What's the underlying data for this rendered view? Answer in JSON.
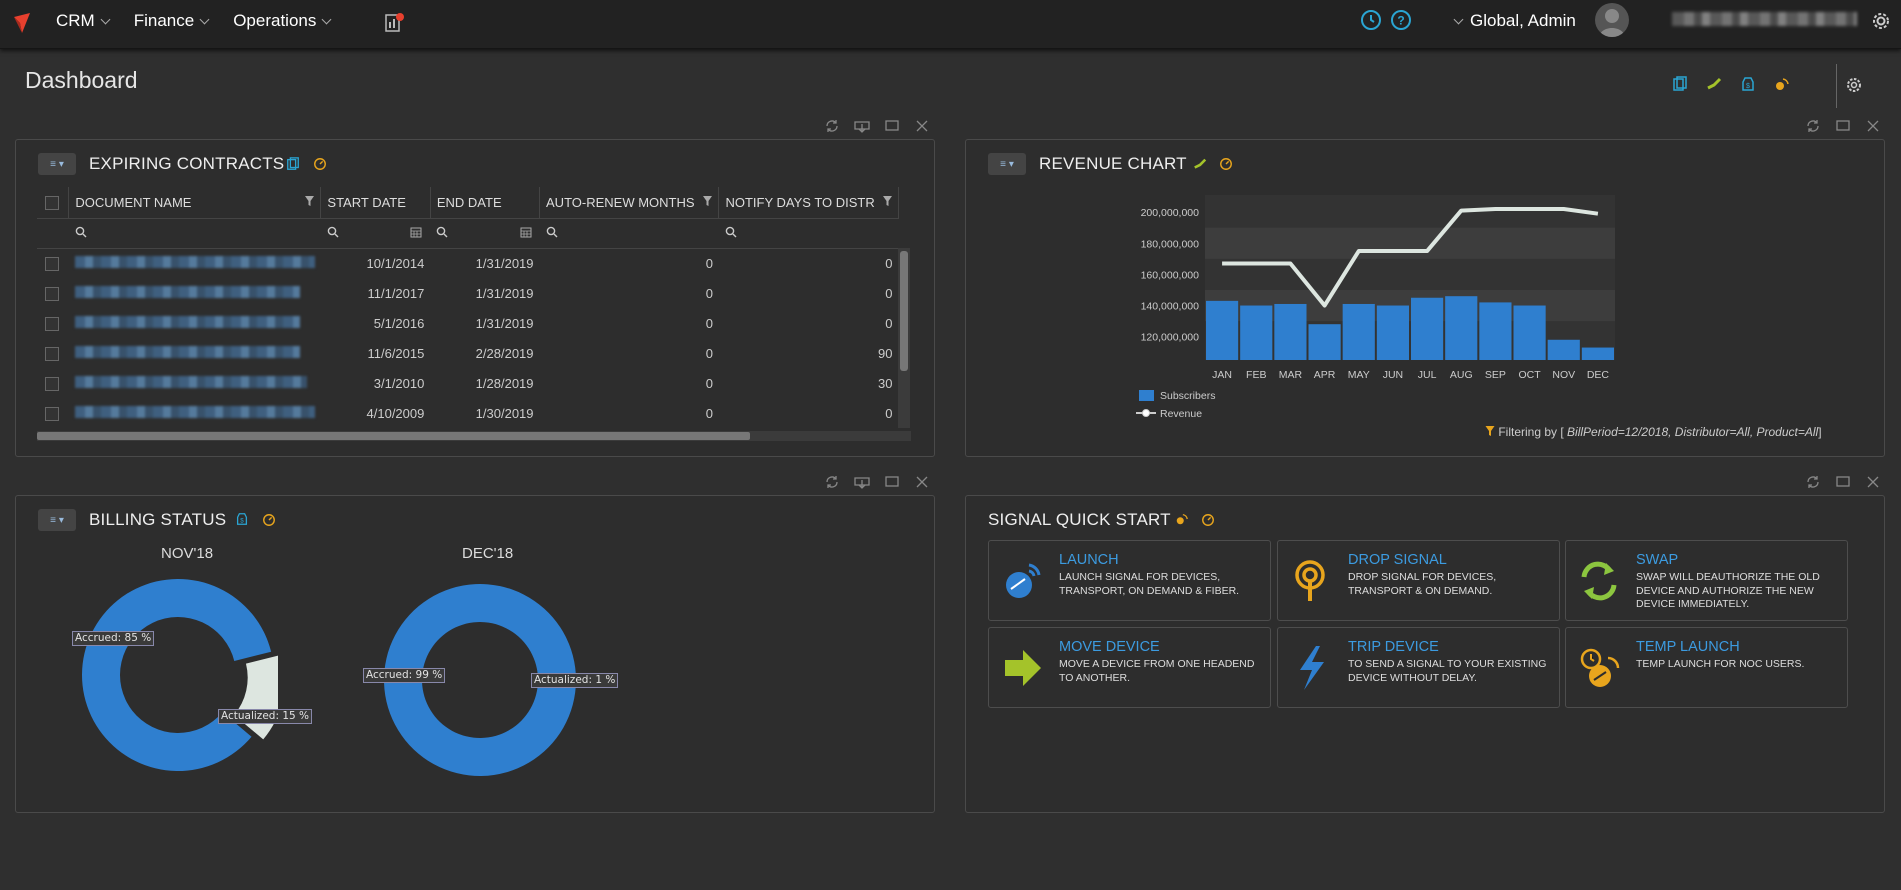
{
  "topbar": {
    "nav": [
      {
        "label": "CRM"
      },
      {
        "label": "Finance"
      },
      {
        "label": "Operations"
      }
    ],
    "user_label": "Global, Admin",
    "colors": {
      "accent": "#2aa5d3",
      "brand": "#e8402e"
    }
  },
  "page": {
    "title": "Dashboard"
  },
  "contracts": {
    "title": "EXPIRING CONTRACTS",
    "columns": [
      "DOCUMENT NAME",
      "START DATE",
      "END DATE",
      "AUTO-RENEW MONTHS",
      "NOTIFY DAYS TO DISTR"
    ],
    "rows": [
      {
        "start": "10/1/2014",
        "end": "1/31/2019",
        "renew": "0",
        "notify": "0"
      },
      {
        "start": "11/1/2017",
        "end": "1/31/2019",
        "renew": "0",
        "notify": "0"
      },
      {
        "start": "5/1/2016",
        "end": "1/31/2019",
        "renew": "0",
        "notify": "0"
      },
      {
        "start": "11/6/2015",
        "end": "2/28/2019",
        "renew": "0",
        "notify": "90"
      },
      {
        "start": "3/1/2010",
        "end": "1/28/2019",
        "renew": "0",
        "notify": "30"
      },
      {
        "start": "4/10/2009",
        "end": "1/30/2019",
        "renew": "0",
        "notify": "0"
      }
    ]
  },
  "revenue": {
    "title": "REVENUE CHART",
    "legend_subscribers": "Subscribers",
    "legend_revenue": "Revenue",
    "filter_prefix": "Filtering by [",
    "filter_text": "BillPeriod=12/2018, Distributor=All, Product=All",
    "filter_suffix": "]"
  },
  "billing": {
    "title": "BILLING STATUS",
    "nov": {
      "title": "NOV'18",
      "accrued_label": "Accrued: 85 %",
      "actualized_label": "Actualized: 15 %",
      "accrued": 85,
      "actualized": 15
    },
    "dec": {
      "title": "DEC'18",
      "accrued_label": "Accrued: 99 %",
      "actualized_label": "Actualized: 1 %",
      "accrued": 99,
      "actualized": 1
    }
  },
  "signal": {
    "title": "SIGNAL QUICK START",
    "cards": [
      {
        "title": "LAUNCH",
        "desc": "LAUNCH SIGNAL FOR DEVICES, TRANSPORT, ON DEMAND & FIBER."
      },
      {
        "title": "DROP SIGNAL",
        "desc": "DROP SIGNAL FOR DEVICES, TRANSPORT & ON DEMAND."
      },
      {
        "title": "SWAP",
        "desc": "SWAP WILL DEAUTHORIZE THE OLD DEVICE AND AUTHORIZE THE NEW DEVICE IMMEDIATELY."
      },
      {
        "title": "MOVE DEVICE",
        "desc": "MOVE A DEVICE FROM ONE HEADEND TO ANOTHER."
      },
      {
        "title": "TRIP DEVICE",
        "desc": "TO SEND A SIGNAL TO YOUR EXISTING DEVICE WITHOUT DELAY."
      },
      {
        "title": "TEMP LAUNCH",
        "desc": "TEMP LAUNCH FOR NOC USERS."
      }
    ]
  },
  "chart_data": {
    "type": "bar",
    "categories": [
      "JAN",
      "FEB",
      "MAR",
      "APR",
      "MAY",
      "JUN",
      "JUL",
      "AUG",
      "SEP",
      "OCT",
      "NOV",
      "DEC"
    ],
    "series": [
      {
        "name": "Subscribers",
        "type": "bar",
        "color": "#2f7fcf",
        "values": [
          143000000,
          140000000,
          141000000,
          128000000,
          141000000,
          140000000,
          145000000,
          146000000,
          142000000,
          140000000,
          118000000,
          113000000
        ]
      },
      {
        "name": "Revenue",
        "type": "line",
        "color": "#dde6e0",
        "values": [
          167000000,
          167000000,
          167000000,
          140000000,
          175000000,
          175000000,
          175000000,
          201000000,
          202000000,
          202000000,
          202000000,
          199000000
        ]
      }
    ],
    "y_ticks": [
      "120,000,000",
      "140,000,000",
      "160,000,000",
      "180,000,000",
      "200,000,000"
    ],
    "ylim": [
      105000000,
      211000000
    ],
    "grid": "alternating bands",
    "legend": "bottom-left"
  }
}
